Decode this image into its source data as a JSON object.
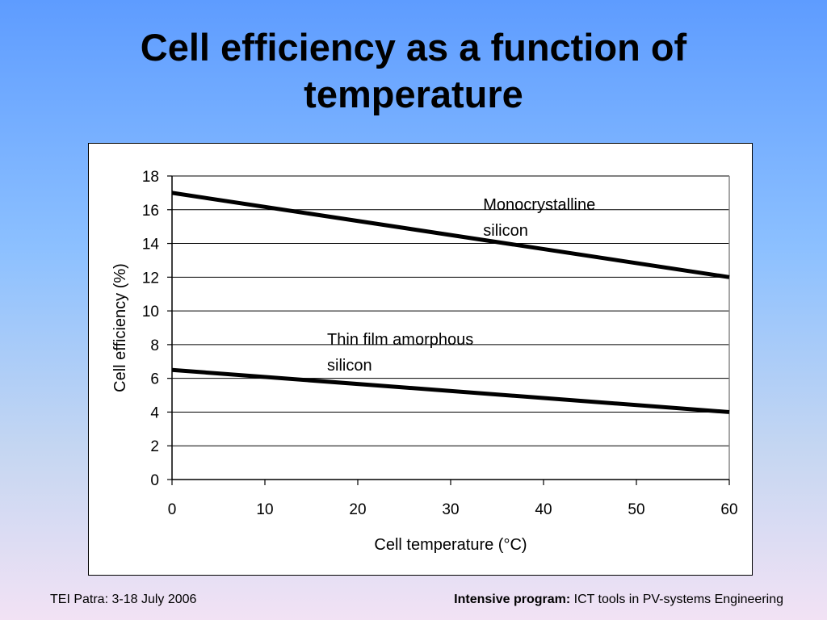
{
  "slide": {
    "title_line1": "Cell efficiency as a function of",
    "title_line2": "temperature"
  },
  "footer": {
    "left": "TEI Patra: 3-18 July 2006",
    "right_bold": "Intensive program:",
    "right_text": " ICT tools in PV-systems Engineering"
  },
  "chart_data": {
    "type": "line",
    "xlabel": "Cell temperature (°C)",
    "ylabel": "Cell efficiency (%)",
    "xlim": [
      0,
      60
    ],
    "ylim": [
      0,
      18
    ],
    "x_ticks": [
      0,
      10,
      20,
      30,
      40,
      50,
      60
    ],
    "y_ticks": [
      0,
      2,
      4,
      6,
      8,
      10,
      12,
      14,
      16,
      18
    ],
    "grid": "horizontal",
    "line_color": "#000000",
    "series": [
      {
        "name": "Monocrystalline silicon",
        "label_lines": [
          "Monocrystalline",
          "silicon"
        ],
        "x": [
          0,
          60
        ],
        "y": [
          17,
          12
        ],
        "label_at": [
          33.5,
          16.0
        ]
      },
      {
        "name": "Thin film amorphous silicon",
        "label_lines": [
          "Thin film amorphous",
          "silicon"
        ],
        "x": [
          0,
          60
        ],
        "y": [
          6.5,
          4
        ],
        "label_at": [
          16.7,
          8.0
        ]
      }
    ]
  }
}
